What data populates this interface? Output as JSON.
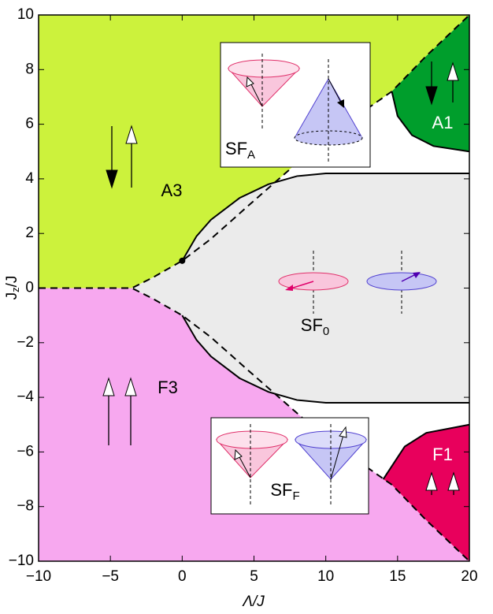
{
  "chart_data": {
    "type": "phase-diagram",
    "x_label": "Λ/J",
    "y_label": [
      "J",
      "z",
      "/J"
    ],
    "xlim": [
      -10,
      20
    ],
    "ylim": [
      -10,
      10
    ],
    "xticks": [
      {
        "value": -10,
        "label": "−10"
      },
      {
        "value": -5,
        "label": "−5"
      },
      0,
      5,
      10,
      15,
      20
    ],
    "yticks": [
      {
        "value": -10,
        "label": "−10"
      },
      {
        "value": -8,
        "label": "−8"
      },
      {
        "value": -6,
        "label": "−6"
      },
      {
        "value": -4,
        "label": "−4"
      },
      {
        "value": -2,
        "label": "−2"
      },
      0,
      2,
      4,
      6,
      8,
      10
    ],
    "regions": [
      {
        "label": "A3",
        "color": "#ccf23c",
        "x": [
          -10,
          -10,
          -3.5,
          -2,
          0,
          2,
          5,
          10,
          14.6,
          17,
          20
        ],
        "y": [
          10,
          0,
          0,
          0.4,
          1,
          1.8,
          3.2,
          5.5,
          7.2,
          8.5,
          10
        ]
      },
      {
        "label": "F3",
        "color": "#f7a8ef",
        "x": [
          -10,
          -10,
          -3.5,
          -2,
          0,
          2,
          5,
          10,
          14.6,
          17,
          20
        ],
        "y": [
          -10,
          0,
          0,
          -0.4,
          -1,
          -1.8,
          -3.2,
          -5.5,
          -7.2,
          -8.5,
          -10
        ]
      },
      {
        "label": "SF",
        "sub": "0",
        "color": "#ebebeb",
        "x": [
          -3.5,
          -2,
          0,
          1,
          2,
          4,
          6,
          8,
          10,
          20,
          20,
          10,
          8,
          6,
          4,
          2,
          1,
          0,
          -2
        ],
        "y": [
          0,
          0.4,
          1,
          1.9,
          2.5,
          3.3,
          3.8,
          4.1,
          4.2,
          4.2,
          -4.2,
          -4.2,
          -4.1,
          -3.8,
          -3.3,
          -2.5,
          -1.9,
          -1,
          -0.4
        ]
      },
      {
        "label": "A1",
        "color": "#009e2c",
        "x": [
          14.6,
          17,
          20,
          20,
          17.5,
          16,
          15
        ],
        "y": [
          7.2,
          8.5,
          10,
          5,
          5.2,
          5.6,
          6.3
        ]
      },
      {
        "label": "F1",
        "color": "#e8005c",
        "x": [
          14,
          14.6,
          17,
          20,
          20,
          17,
          15.5
        ],
        "y": [
          -7,
          -7.2,
          -8.5,
          -10,
          -5,
          -5.3,
          -5.8
        ]
      }
    ],
    "boundaries": [
      {
        "style": "dashed",
        "x": [
          -10,
          -3.5,
          -2,
          0,
          2,
          5,
          10,
          14.6,
          17,
          20
        ],
        "y": [
          0,
          0,
          0.4,
          1,
          1.8,
          3.2,
          5.5,
          7.2,
          8.5,
          10
        ]
      },
      {
        "style": "dashed",
        "x": [
          -10,
          -3.5,
          -2,
          0,
          2,
          5,
          10,
          14.6,
          17,
          20
        ],
        "y": [
          0,
          0,
          -0.4,
          -1,
          -1.8,
          -3.2,
          -5.5,
          -7.2,
          -8.5,
          -10
        ]
      },
      {
        "style": "solid",
        "x": [
          0,
          1,
          2,
          4,
          6,
          8,
          10,
          20
        ],
        "y": [
          1,
          1.9,
          2.5,
          3.3,
          3.8,
          4.1,
          4.2,
          4.2
        ]
      },
      {
        "style": "solid",
        "x": [
          0,
          1,
          2,
          4,
          6,
          8,
          10,
          20
        ],
        "y": [
          -1,
          -1.9,
          -2.5,
          -3.3,
          -3.8,
          -4.1,
          -4.2,
          -4.2
        ]
      },
      {
        "style": "solid",
        "x": [
          14.6,
          15,
          16,
          17.5,
          20
        ],
        "y": [
          7.2,
          6.3,
          5.6,
          5.2,
          5
        ]
      },
      {
        "style": "solid",
        "x": [
          14,
          15.5,
          17,
          20
        ],
        "y": [
          -7,
          -5.8,
          -5.3,
          -5
        ]
      }
    ],
    "points": [
      {
        "x": 0,
        "y": 1
      }
    ],
    "inset_labels": [
      {
        "label": "SF",
        "sub": "A"
      },
      {
        "label": "SF",
        "sub": "F"
      }
    ]
  }
}
